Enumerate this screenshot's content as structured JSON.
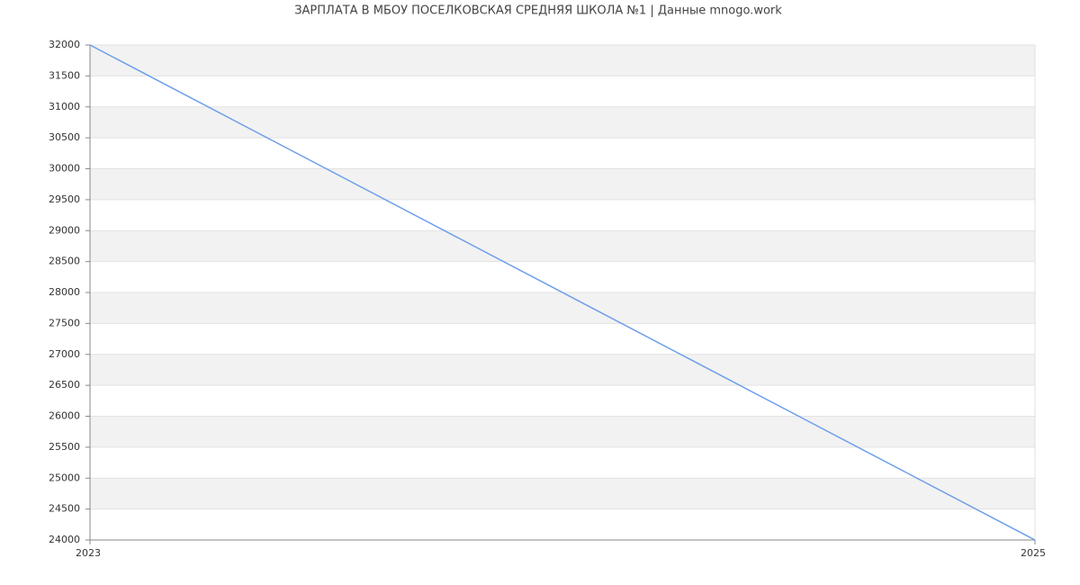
{
  "chart_data": {
    "type": "line",
    "title": "ЗАРПЛАТА В МБОУ ПОСЕЛКОВСКАЯ СРЕДНЯЯ ШКОЛА №1 | Данные mnogo.work",
    "x": [
      2023,
      2025
    ],
    "values": [
      32000,
      24000
    ],
    "color": "#6d9eeb",
    "xlim": [
      2023,
      2025
    ],
    "xticks": [
      2023,
      2025
    ],
    "ylim": [
      24000,
      32000
    ],
    "yticks": [
      24000,
      24500,
      25000,
      25500,
      26000,
      26500,
      27000,
      27500,
      28000,
      28500,
      29000,
      29500,
      30000,
      30500,
      31000,
      31500,
      32000
    ],
    "grid": true
  }
}
